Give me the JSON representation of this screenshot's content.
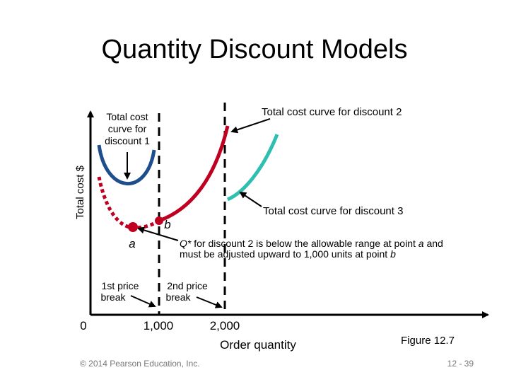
{
  "title": "Quantity Discount Models",
  "axes": {
    "y_label": "Total cost $",
    "x_label": "Order quantity",
    "x_ticks": [
      "0",
      "1,000",
      "2,000"
    ]
  },
  "annotations": {
    "discount1": [
      "Total cost",
      "curve for",
      "discount 1"
    ],
    "discount2": "Total cost curve for discount 2",
    "discount3": "Total cost curve for discount 3",
    "point_a": "a",
    "point_b": "b",
    "note": [
      [
        "Q*",
        " for discount 2 is below the allowable range at point ",
        "a",
        " and"
      ],
      [
        "must be adjusted upward to 1,000 units at point ",
        "b"
      ]
    ],
    "break1": [
      "1st price",
      "break"
    ],
    "break2": [
      "2nd price",
      "break"
    ]
  },
  "figure": "Figure 12.7",
  "footer": {
    "copyright": "© 2014 Pearson Education, Inc.",
    "page": "12 - 39"
  }
}
